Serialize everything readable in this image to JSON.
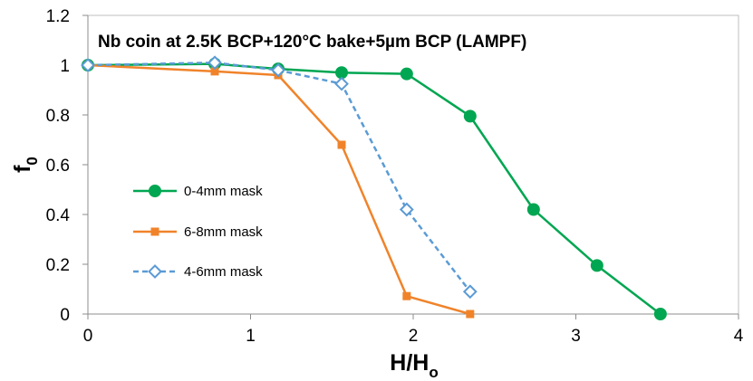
{
  "chart_data": {
    "type": "line",
    "title": "Nb coin at 2.5K BCP+120°C bake+5µm BCP (LAMPF)",
    "xlabel": {
      "main": "H/H",
      "sub": "o"
    },
    "ylabel": {
      "main": "f",
      "sub": "0"
    },
    "xlim": [
      0,
      4
    ],
    "ylim": [
      0,
      1.2
    ],
    "xticks": [
      0,
      1,
      2,
      3,
      4
    ],
    "yticks": [
      0,
      0.2,
      0.4,
      0.6,
      0.8,
      1,
      1.2
    ],
    "xtick_labels": [
      "0",
      "1",
      "2",
      "3",
      "4"
    ],
    "ytick_labels": [
      "0",
      "0.2",
      "0.4",
      "0.6",
      "0.8",
      "1",
      "1.2"
    ],
    "grid": false,
    "legend_position": "left",
    "series": [
      {
        "name": "0-4mm mask",
        "color": "#00a651",
        "marker": "circle",
        "line": "solid",
        "x": [
          0,
          0.78,
          1.17,
          1.56,
          1.96,
          2.35,
          2.74,
          3.13,
          3.52
        ],
        "y": [
          1.0,
          1.005,
          0.985,
          0.97,
          0.965,
          0.795,
          0.42,
          0.195,
          0.0
        ]
      },
      {
        "name": "6-8mm mask",
        "color": "#f0832a",
        "marker": "square",
        "line": "solid",
        "x": [
          0,
          0.78,
          1.17,
          1.56,
          1.96,
          2.35
        ],
        "y": [
          1.0,
          0.975,
          0.96,
          0.68,
          0.072,
          0.0
        ]
      },
      {
        "name": "4-6mm mask",
        "color": "#5b9bd5",
        "marker": "diamond-open",
        "line": "dashed",
        "x": [
          0,
          0.78,
          1.17,
          1.56,
          1.96,
          2.35
        ],
        "y": [
          1.0,
          1.01,
          0.98,
          0.925,
          0.42,
          0.09
        ]
      }
    ]
  }
}
